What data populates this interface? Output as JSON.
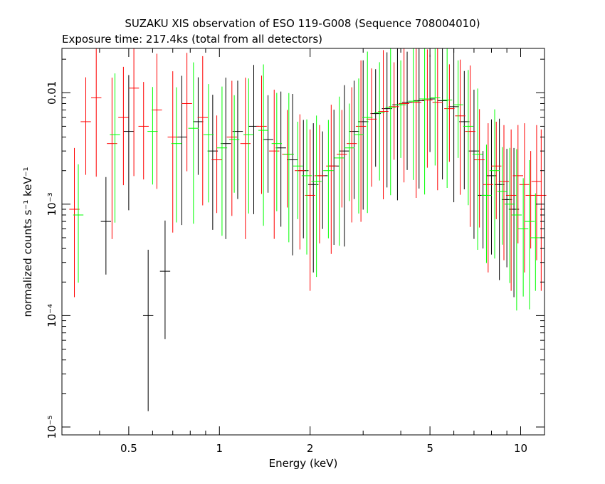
{
  "chart_data": {
    "type": "scatter",
    "title": "SUZAKU XIS observation of ESO 119-G008 (Sequence 708004010)",
    "subtitle": "Exposure time: 217.4ks (total from all detectors)",
    "xlabel": "Energy (keV)",
    "ylabel": "normalized counts s⁻¹ keV⁻¹",
    "xscale": "log",
    "yscale": "log",
    "xlim": [
      0.3,
      12
    ],
    "ylim": [
      8.5e-06,
      0.025
    ],
    "grid": false,
    "x_ticks": [
      {
        "value": 0.5,
        "label": "0.5"
      },
      {
        "value": 1,
        "label": "1"
      },
      {
        "value": 2,
        "label": "2"
      },
      {
        "value": 5,
        "label": "5"
      },
      {
        "value": 10,
        "label": "10"
      }
    ],
    "y_ticks": [
      {
        "value": 0.01,
        "label": "0.01"
      },
      {
        "value": 0.001,
        "label": "10⁻³"
      },
      {
        "value": 0.0001,
        "label": "10⁻⁴"
      },
      {
        "value": 1e-05,
        "label": "10⁻⁵"
      }
    ],
    "series": [
      {
        "color": "#000000",
        "values": [
          [
            0.42,
            0.0007
          ],
          [
            0.5,
            0.0045
          ],
          [
            0.58,
            0.0001
          ],
          [
            0.66,
            0.00025
          ],
          [
            0.75,
            0.004
          ],
          [
            0.85,
            0.0055
          ],
          [
            0.95,
            0.003
          ],
          [
            1.05,
            0.0035
          ],
          [
            1.15,
            0.0045
          ],
          [
            1.3,
            0.005
          ],
          [
            1.45,
            0.0038
          ],
          [
            1.6,
            0.0032
          ],
          [
            1.75,
            0.0025
          ],
          [
            1.9,
            0.002
          ],
          [
            2.05,
            0.0015
          ],
          [
            2.2,
            0.0018
          ],
          [
            2.4,
            0.0022
          ],
          [
            2.6,
            0.003
          ],
          [
            2.8,
            0.0045
          ],
          [
            3.0,
            0.0055
          ],
          [
            3.3,
            0.0065
          ],
          [
            3.6,
            0.0072
          ],
          [
            3.9,
            0.0078
          ],
          [
            4.2,
            0.0082
          ],
          [
            4.6,
            0.0085
          ],
          [
            5.0,
            0.0088
          ],
          [
            5.5,
            0.0085
          ],
          [
            6.0,
            0.0075
          ],
          [
            6.5,
            0.0055
          ],
          [
            7.0,
            0.003
          ],
          [
            7.5,
            0.0012
          ],
          [
            8.0,
            0.0018
          ],
          [
            8.5,
            0.0015
          ],
          [
            9.0,
            0.0011
          ],
          [
            9.5,
            0.0009
          ]
        ]
      },
      {
        "color": "#ff0000",
        "values": [
          [
            0.33,
            0.0009
          ],
          [
            0.36,
            0.0055
          ],
          [
            0.39,
            0.009
          ],
          [
            0.44,
            0.0035
          ],
          [
            0.48,
            0.006
          ],
          [
            0.52,
            0.011
          ],
          [
            0.56,
            0.005
          ],
          [
            0.62,
            0.007
          ],
          [
            0.7,
            0.004
          ],
          [
            0.78,
            0.008
          ],
          [
            0.88,
            0.006
          ],
          [
            0.98,
            0.0025
          ],
          [
            1.1,
            0.004
          ],
          [
            1.22,
            0.0035
          ],
          [
            1.38,
            0.005
          ],
          [
            1.52,
            0.003
          ],
          [
            1.68,
            0.0028
          ],
          [
            1.85,
            0.002
          ],
          [
            2.0,
            0.0012
          ],
          [
            2.15,
            0.0018
          ],
          [
            2.35,
            0.0022
          ],
          [
            2.55,
            0.0028
          ],
          [
            2.75,
            0.0035
          ],
          [
            2.95,
            0.005
          ],
          [
            3.2,
            0.0058
          ],
          [
            3.5,
            0.0068
          ],
          [
            3.8,
            0.0075
          ],
          [
            4.1,
            0.008
          ],
          [
            4.5,
            0.0082
          ],
          [
            4.9,
            0.0086
          ],
          [
            5.3,
            0.0082
          ],
          [
            5.8,
            0.0072
          ],
          [
            6.3,
            0.0062
          ],
          [
            6.8,
            0.0045
          ],
          [
            7.3,
            0.0025
          ],
          [
            7.8,
            0.0015
          ],
          [
            8.3,
            0.0022
          ],
          [
            8.8,
            0.0016
          ],
          [
            9.3,
            0.0012
          ],
          [
            9.8,
            0.0018
          ],
          [
            10.3,
            0.0015
          ],
          [
            10.8,
            0.0012
          ],
          [
            11.3,
            0.0016
          ],
          [
            11.7,
            0.0012
          ]
        ]
      },
      {
        "color": "#00ff00",
        "values": [
          [
            0.34,
            0.0008
          ],
          [
            0.45,
            0.0042
          ],
          [
            0.6,
            0.0045
          ],
          [
            0.72,
            0.0035
          ],
          [
            0.82,
            0.0048
          ],
          [
            0.92,
            0.0042
          ],
          [
            1.02,
            0.0032
          ],
          [
            1.12,
            0.0038
          ],
          [
            1.25,
            0.0042
          ],
          [
            1.4,
            0.0046
          ],
          [
            1.55,
            0.0035
          ],
          [
            1.7,
            0.0028
          ],
          [
            1.82,
            0.0022
          ],
          [
            1.95,
            0.0018
          ],
          [
            2.1,
            0.0016
          ],
          [
            2.3,
            0.002
          ],
          [
            2.5,
            0.0026
          ],
          [
            2.7,
            0.0032
          ],
          [
            2.9,
            0.0042
          ],
          [
            3.1,
            0.006
          ],
          [
            3.4,
            0.0066
          ],
          [
            3.7,
            0.0074
          ],
          [
            4.0,
            0.0078
          ],
          [
            4.4,
            0.0084
          ],
          [
            4.8,
            0.0088
          ],
          [
            5.2,
            0.009
          ],
          [
            5.7,
            0.0086
          ],
          [
            6.2,
            0.0078
          ],
          [
            6.7,
            0.005
          ],
          [
            7.2,
            0.0028
          ],
          [
            7.7,
            0.0012
          ],
          [
            8.2,
            0.002
          ],
          [
            8.7,
            0.0013
          ],
          [
            9.2,
            0.001
          ],
          [
            9.7,
            0.0008
          ],
          [
            10.2,
            0.0006
          ],
          [
            10.7,
            0.0007
          ],
          [
            11.2,
            0.0005
          ]
        ]
      }
    ]
  }
}
